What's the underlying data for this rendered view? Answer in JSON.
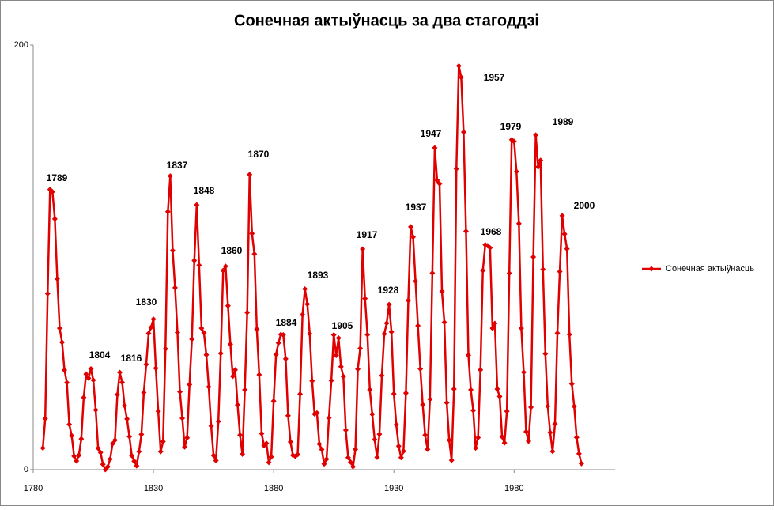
{
  "chart_data": {
    "type": "line",
    "title": "Сонечная актыўнасць за два стагоддзі",
    "x": [
      1784,
      1785,
      1786,
      1787,
      1788,
      1789,
      1790,
      1791,
      1792,
      1793,
      1794,
      1795,
      1796,
      1797,
      1798,
      1799,
      1800,
      1801,
      1802,
      1803,
      1804,
      1805,
      1806,
      1807,
      1808,
      1809,
      1810,
      1811,
      1812,
      1813,
      1814,
      1815,
      1816,
      1817,
      1818,
      1819,
      1820,
      1821,
      1822,
      1823,
      1824,
      1825,
      1826,
      1827,
      1828,
      1829,
      1830,
      1831,
      1832,
      1833,
      1834,
      1835,
      1836,
      1837,
      1838,
      1839,
      1840,
      1841,
      1842,
      1843,
      1844,
      1845,
      1846,
      1847,
      1848,
      1849,
      1850,
      1851,
      1852,
      1853,
      1854,
      1855,
      1856,
      1857,
      1858,
      1859,
      1860,
      1861,
      1862,
      1863,
      1864,
      1865,
      1866,
      1867,
      1868,
      1869,
      1870,
      1871,
      1872,
      1873,
      1874,
      1875,
      1876,
      1877,
      1878,
      1879,
      1880,
      1881,
      1882,
      1883,
      1884,
      1885,
      1886,
      1887,
      1888,
      1889,
      1890,
      1891,
      1892,
      1893,
      1894,
      1895,
      1896,
      1897,
      1898,
      1899,
      1900,
      1901,
      1902,
      1903,
      1904,
      1905,
      1906,
      1907,
      1908,
      1909,
      1910,
      1911,
      1912,
      1913,
      1914,
      1915,
      1916,
      1917,
      1918,
      1919,
      1920,
      1921,
      1922,
      1923,
      1924,
      1925,
      1926,
      1927,
      1928,
      1929,
      1930,
      1931,
      1932,
      1933,
      1934,
      1935,
      1936,
      1937,
      1938,
      1939,
      1940,
      1941,
      1942,
      1943,
      1944,
      1945,
      1946,
      1947,
      1948,
      1949,
      1950,
      1951,
      1952,
      1953,
      1954,
      1955,
      1956,
      1957,
      1958,
      1959,
      1960,
      1961,
      1962,
      1963,
      1964,
      1965,
      1966,
      1967,
      1968,
      1969,
      1970,
      1971,
      1972,
      1973,
      1974,
      1975,
      1976,
      1977,
      1978,
      1979,
      1980,
      1981,
      1982,
      1983,
      1984,
      1985,
      1986,
      1987,
      1988,
      1989,
      1990,
      1991,
      1992,
      1993,
      1994,
      1995,
      1996,
      1997,
      1998,
      1999,
      2000,
      2001,
      2002,
      2003,
      2004,
      2005,
      2006,
      2007,
      2008
    ],
    "series": [
      {
        "name": "Сонечная актыўнасць",
        "color": "#e00000",
        "values": [
          10.2,
          24.1,
          82.9,
          132.0,
          130.9,
          118.1,
          89.9,
          66.6,
          60.0,
          46.9,
          41.0,
          21.3,
          16.0,
          6.4,
          4.1,
          6.8,
          14.5,
          34.0,
          45.0,
          43.1,
          47.5,
          42.2,
          28.1,
          10.1,
          8.1,
          2.5,
          0.0,
          1.4,
          5.0,
          12.2,
          13.9,
          35.4,
          45.8,
          41.1,
          30.1,
          23.9,
          15.6,
          6.6,
          4.0,
          1.8,
          8.5,
          16.6,
          36.3,
          49.6,
          64.2,
          67.0,
          70.9,
          47.8,
          27.5,
          8.5,
          13.2,
          56.9,
          121.5,
          138.3,
          103.2,
          85.7,
          64.6,
          36.7,
          24.2,
          10.7,
          15.0,
          40.1,
          61.5,
          98.5,
          124.7,
          96.3,
          66.6,
          64.5,
          54.1,
          39.0,
          20.6,
          6.7,
          4.3,
          22.7,
          54.8,
          93.8,
          95.8,
          77.2,
          59.1,
          44.0,
          47.0,
          30.5,
          16.3,
          7.3,
          37.6,
          74.0,
          139.0,
          111.2,
          101.6,
          66.2,
          44.7,
          17.0,
          11.3,
          12.4,
          3.4,
          6.0,
          32.3,
          54.3,
          59.7,
          63.7,
          63.5,
          52.2,
          25.4,
          13.1,
          6.8,
          6.3,
          7.1,
          35.6,
          73.0,
          85.1,
          78.0,
          64.0,
          41.8,
          26.2,
          26.7,
          12.1,
          9.5,
          2.7,
          5.0,
          24.4,
          42.0,
          63.5,
          53.8,
          62.0,
          48.5,
          43.9,
          18.6,
          5.7,
          3.6,
          1.4,
          9.6,
          47.4,
          57.1,
          103.9,
          80.6,
          63.6,
          37.6,
          26.1,
          14.2,
          5.8,
          16.7,
          44.3,
          63.9,
          69.0,
          77.8,
          64.9,
          35.7,
          21.2,
          11.1,
          5.7,
          8.7,
          36.1,
          79.7,
          114.4,
          109.6,
          88.8,
          67.8,
          47.5,
          30.6,
          16.3,
          9.6,
          33.2,
          92.6,
          151.6,
          136.3,
          134.7,
          83.9,
          69.4,
          31.5,
          13.9,
          4.4,
          38.0,
          141.7,
          190.2,
          184.8,
          159.0,
          112.3,
          53.9,
          37.6,
          27.9,
          10.2,
          15.1,
          47.0,
          93.8,
          105.9,
          105.5,
          104.5,
          66.6,
          68.9,
          38.0,
          34.5,
          15.5,
          12.6,
          27.5,
          92.5,
          155.4,
          154.6,
          140.4,
          115.9,
          66.6,
          45.9,
          17.9,
          13.4,
          29.4,
          100.2,
          157.6,
          142.6,
          145.7,
          94.3,
          54.6,
          29.9,
          17.5,
          8.6,
          21.5,
          64.3,
          93.3,
          119.6,
          111.0,
          104.0,
          63.7,
          40.4,
          29.8,
          15.2,
          7.5,
          2.9
        ]
      }
    ],
    "annotations": [
      "1789",
      "1804",
      "1816",
      "1830",
      "1837",
      "1848",
      "1860",
      "1870",
      "1884",
      "1893",
      "1905",
      "1917",
      "1928",
      "1937",
      "1947",
      "1957",
      "1968",
      "1979",
      "1989",
      "2000"
    ],
    "xlim": [
      1780,
      2022
    ],
    "xticks": [
      1780,
      1830,
      1880,
      1930,
      1980
    ],
    "ylim": [
      0,
      200
    ],
    "yticks": [
      0,
      200
    ],
    "legend": "right"
  }
}
